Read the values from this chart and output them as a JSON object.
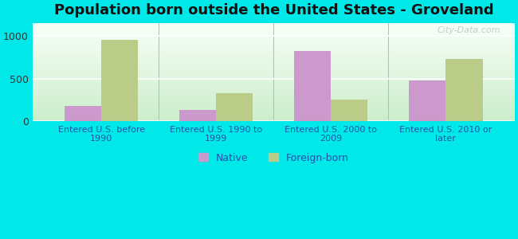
{
  "title": "Population born outside the United States - Groveland",
  "categories": [
    "Entered U.S. before\n1990",
    "Entered U.S. 1990 to\n1999",
    "Entered U.S. 2000 to\n2009",
    "Entered U.S. 2010 or\nlater"
  ],
  "native_values": [
    175,
    135,
    820,
    475
  ],
  "foreign_values": [
    960,
    325,
    255,
    735
  ],
  "native_color": "#cc99cc",
  "foreign_color": "#bbcc88",
  "background_outer": "#00e8e8",
  "ylim": [
    0,
    1150
  ],
  "yticks": [
    0,
    500,
    1000
  ],
  "bar_width": 0.32,
  "legend_native": "Native",
  "legend_foreign": "Foreign-born",
  "title_fontsize": 13,
  "axis_label_color": "#2255aa",
  "tick_color": "#333333",
  "watermark": "City-Data.com",
  "grad_top": "#f8fff8",
  "grad_bottom": "#cceecc"
}
